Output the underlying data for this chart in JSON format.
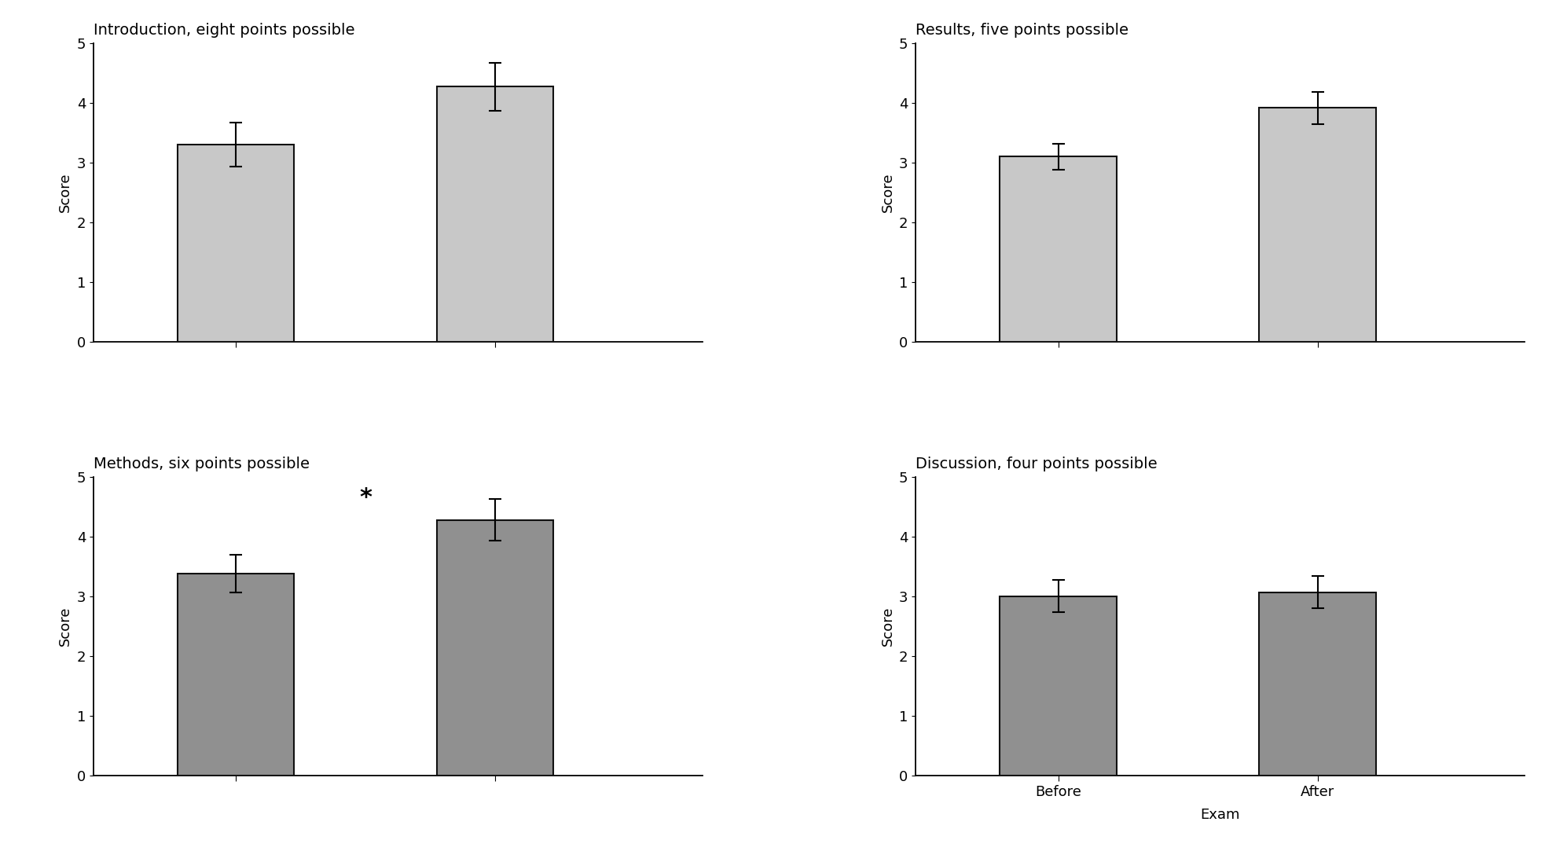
{
  "panels": [
    {
      "title": "Introduction, eight points possible",
      "values": [
        3.3,
        4.27
      ],
      "errors": [
        0.37,
        0.4
      ],
      "ylim": [
        0,
        5
      ],
      "yticks": [
        0,
        1,
        2,
        3,
        4,
        5
      ],
      "ylabel": "Score",
      "asterisk": false,
      "asterisk_x": 1.5,
      "asterisk_y": 4.65,
      "bar_color": "#c0c0c0",
      "show_xticks": false
    },
    {
      "title": "Results, five points possible",
      "values": [
        3.1,
        3.92
      ],
      "errors": [
        0.22,
        0.27
      ],
      "ylim": [
        0,
        5
      ],
      "yticks": [
        0,
        1,
        2,
        3,
        4,
        5
      ],
      "ylabel": "Score",
      "asterisk": false,
      "asterisk_x": null,
      "asterisk_y": null,
      "bar_color": "#a0a0a0",
      "show_xticks": false
    },
    {
      "title": "Methods, six points possible",
      "values": [
        3.38,
        4.28
      ],
      "errors": [
        0.32,
        0.35
      ],
      "ylim": [
        0,
        5
      ],
      "yticks": [
        0,
        1,
        2,
        3,
        4,
        5
      ],
      "ylabel": "Score",
      "asterisk": true,
      "asterisk_x": 1.5,
      "asterisk_y": 4.65,
      "bar_color": "#909090",
      "show_xticks": false
    },
    {
      "title": "Discussion, four points possible",
      "values": [
        3.0,
        3.07
      ],
      "errors": [
        0.27,
        0.27
      ],
      "ylim": [
        0,
        5
      ],
      "yticks": [
        0,
        1,
        2,
        3,
        4,
        5
      ],
      "ylabel": "Score",
      "asterisk": false,
      "asterisk_x": null,
      "asterisk_y": null,
      "bar_color": "#909090",
      "show_xticks": true
    }
  ],
  "bar_colors_top": "#c8c8c8",
  "bar_colors_bottom": "#909090",
  "bar_edgecolor": "#111111",
  "bar_width": 0.45,
  "x_positions": [
    1,
    2
  ],
  "xlim": [
    0.45,
    2.8
  ],
  "xtick_labels": [
    "Before",
    "After"
  ],
  "xlabel_exam": "Exam",
  "background_color": "#ffffff",
  "title_fontsize": 14,
  "label_fontsize": 13,
  "tick_fontsize": 13,
  "asterisk_fontsize": 22,
  "hspace": 0.45,
  "wspace": 0.35
}
